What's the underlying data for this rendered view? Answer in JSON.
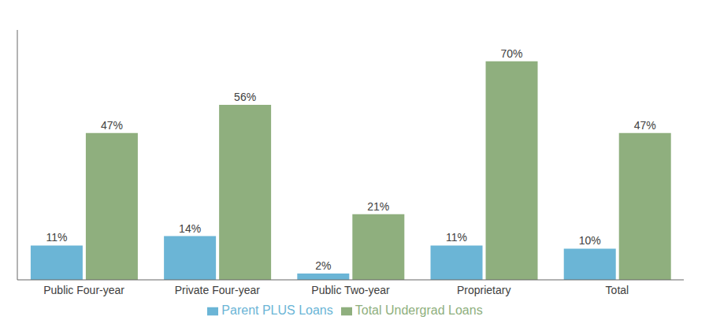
{
  "chart_data": {
    "type": "bar",
    "categories": [
      "Public Four-year",
      "Private Four-year",
      "Public Two-year",
      "Proprietary",
      "Total"
    ],
    "series": [
      {
        "name": "Parent PLUS Loans",
        "color": "#6BB5D6",
        "values": [
          11,
          14,
          2,
          11,
          10
        ],
        "value_labels": [
          "11%",
          "14%",
          "2%",
          "11%",
          "10%"
        ]
      },
      {
        "name": "Total Undergrad Loans",
        "color": "#8FAF7E",
        "values": [
          47,
          56,
          21,
          70,
          47
        ],
        "value_labels": [
          "47%",
          "56%",
          "21%",
          "70%",
          "47%"
        ]
      }
    ],
    "ylim": [
      0,
      80
    ],
    "grid": false,
    "legend": "bottom",
    "data_labels": true,
    "tick_labels": "x"
  }
}
